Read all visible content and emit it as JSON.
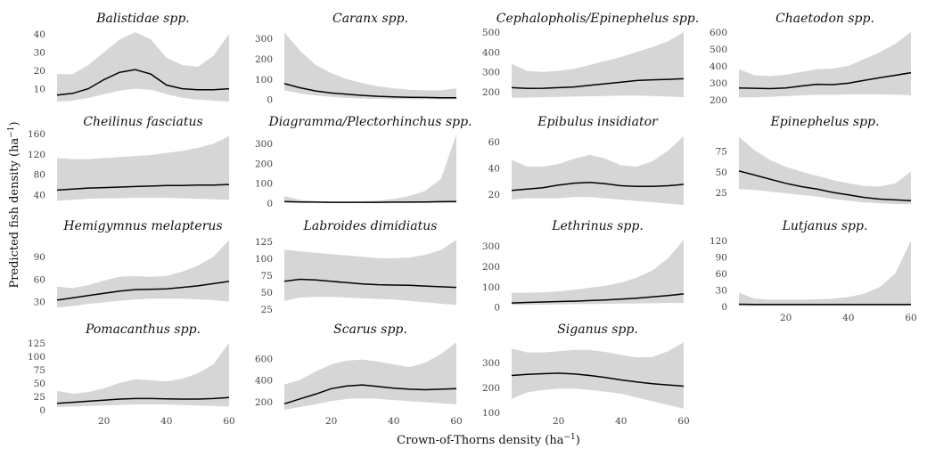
{
  "chart_data": {
    "type": "line",
    "grid": false,
    "xlabel": "Crown-of-Thorns density (ha",
    "xlabel_unit_sup": "−1",
    "xlabel_close": ")",
    "ylabel": "Predicted fish density (ha",
    "ylabel_unit_sup": "−1",
    "ylabel_close": ")",
    "xlim": [
      5,
      60
    ],
    "xticks": [
      20,
      40,
      60
    ],
    "panels": [
      {
        "title": "Balistidae spp.",
        "ylim": [
          3,
          42
        ],
        "yticks": [
          10,
          20,
          30,
          40
        ],
        "x": [
          5,
          10,
          15,
          20,
          25,
          30,
          35,
          40,
          45,
          50,
          55,
          60
        ],
        "fit": [
          6.5,
          7.5,
          10,
          15,
          19,
          20.5,
          18,
          12,
          10,
          9.5,
          9.5,
          10
        ],
        "lower": [
          3,
          3.5,
          5,
          7,
          9,
          10,
          9.5,
          7,
          5,
          4,
          3.5,
          3
        ],
        "upper": [
          18,
          18,
          23,
          30,
          37,
          41,
          37,
          27,
          23,
          22,
          28,
          40
        ]
      },
      {
        "title": "Caranx spp.",
        "ylim": [
          -10,
          340
        ],
        "yticks": [
          0,
          100,
          200,
          300
        ],
        "x": [
          5,
          10,
          15,
          20,
          25,
          30,
          35,
          40,
          45,
          50,
          55,
          60
        ],
        "fit": [
          78,
          58,
          42,
          32,
          26,
          20,
          16,
          13,
          11,
          10,
          9,
          9
        ],
        "lower": [
          45,
          30,
          20,
          13,
          8,
          5,
          3,
          2,
          1,
          1,
          1,
          1
        ],
        "upper": [
          330,
          240,
          170,
          130,
          100,
          80,
          65,
          55,
          48,
          45,
          45,
          55
        ]
      },
      {
        "title": "Cephalopholis/Epinephelus spp.",
        "ylim": [
          150,
          510
        ],
        "yticks": [
          200,
          300,
          400,
          500
        ],
        "x": [
          5,
          10,
          15,
          20,
          25,
          30,
          35,
          40,
          45,
          50,
          55,
          60
        ],
        "fit": [
          220,
          216,
          217,
          220,
          224,
          232,
          240,
          248,
          256,
          260,
          262,
          265
        ],
        "lower": [
          170,
          170,
          172,
          174,
          175,
          177,
          178,
          180,
          180,
          178,
          175,
          172
        ],
        "upper": [
          340,
          305,
          300,
          305,
          315,
          335,
          355,
          375,
          400,
          425,
          455,
          500
        ]
      },
      {
        "title": "Chaetodon spp.",
        "ylim": [
          190,
          610
        ],
        "yticks": [
          200,
          300,
          400,
          500,
          600
        ],
        "x": [
          5,
          10,
          15,
          20,
          25,
          30,
          35,
          40,
          45,
          50,
          55,
          60
        ],
        "fit": [
          270,
          268,
          266,
          270,
          282,
          292,
          290,
          298,
          315,
          330,
          345,
          360
        ],
        "lower": [
          215,
          215,
          218,
          222,
          226,
          230,
          230,
          232,
          232,
          232,
          230,
          228
        ],
        "upper": [
          380,
          345,
          340,
          348,
          365,
          380,
          385,
          400,
          440,
          480,
          530,
          600
        ]
      },
      {
        "title": "Cheilinus fasciatus",
        "ylim": [
          20,
          160
        ],
        "yticks": [
          40,
          80,
          120,
          160
        ],
        "x": [
          5,
          10,
          15,
          20,
          25,
          30,
          35,
          40,
          45,
          50,
          55,
          60
        ],
        "fit": [
          49,
          51,
          53,
          54,
          55,
          56,
          57,
          58,
          58,
          59,
          59,
          60
        ],
        "lower": [
          28,
          30,
          32,
          33,
          33,
          34,
          34,
          34,
          33,
          32,
          31,
          30
        ],
        "upper": [
          112,
          110,
          110,
          112,
          114,
          116,
          118,
          122,
          126,
          132,
          140,
          155
        ]
      },
      {
        "title": "Diagramma/Plectorhinchus spp.",
        "ylim": [
          -10,
          350
        ],
        "yticks": [
          0,
          100,
          200,
          300
        ],
        "x": [
          5,
          10,
          15,
          20,
          25,
          30,
          35,
          40,
          45,
          50,
          55,
          60
        ],
        "fit": [
          7,
          5,
          4,
          3,
          3,
          3,
          3,
          4,
          4,
          5,
          6,
          7
        ],
        "lower": [
          1,
          1,
          1,
          0,
          0,
          0,
          0,
          0,
          0,
          0,
          0,
          0
        ],
        "upper": [
          35,
          15,
          10,
          7,
          7,
          8,
          12,
          20,
          35,
          60,
          120,
          345
        ]
      },
      {
        "title": "Epibulus insidiator",
        "ylim": [
          12,
          66
        ],
        "yticks": [
          20,
          40,
          60
        ],
        "x": [
          5,
          10,
          15,
          20,
          25,
          30,
          35,
          40,
          45,
          50,
          55,
          60
        ],
        "fit": [
          23,
          24,
          25,
          27,
          28.5,
          29,
          28,
          26.5,
          26,
          26,
          26.5,
          27.5
        ],
        "lower": [
          16,
          17,
          17,
          17,
          18,
          18,
          17,
          16,
          15,
          14,
          13,
          12
        ],
        "upper": [
          46,
          41,
          41,
          43,
          47,
          50,
          47,
          42,
          41,
          45,
          53,
          64
        ]
      },
      {
        "title": "Epinephelus spp.",
        "ylim": [
          10,
          96
        ],
        "yticks": [
          25,
          50,
          75
        ],
        "x": [
          5,
          10,
          15,
          20,
          25,
          30,
          35,
          40,
          45,
          50,
          55,
          60
        ],
        "fit": [
          51,
          46,
          41,
          36,
          32,
          29,
          25,
          22,
          19,
          17,
          16,
          15
        ],
        "lower": [
          29,
          28,
          26,
          24,
          22,
          20,
          17,
          15,
          13,
          12,
          11,
          11
        ],
        "upper": [
          92,
          76,
          64,
          56,
          50,
          45,
          40,
          36,
          33,
          32,
          36,
          50
        ]
      },
      {
        "title": "Hemigymnus melapterus",
        "ylim": [
          20,
          115
        ],
        "yticks": [
          30,
          60,
          90
        ],
        "x": [
          5,
          10,
          15,
          20,
          25,
          30,
          35,
          40,
          45,
          50,
          55,
          60
        ],
        "fit": [
          32,
          35,
          38,
          41,
          44,
          46,
          46.5,
          47,
          49,
          51,
          54,
          57
        ],
        "lower": [
          22,
          24,
          27,
          29,
          31,
          33,
          34,
          34,
          34,
          33,
          32,
          30
        ],
        "upper": [
          50,
          48,
          52,
          58,
          63,
          64,
          63,
          64,
          70,
          78,
          90,
          112
        ]
      },
      {
        "title": "Labroides dimidiatus",
        "ylim": [
          25,
          130
        ],
        "yticks": [
          25,
          50,
          75,
          100,
          125
        ],
        "x": [
          5,
          10,
          15,
          20,
          25,
          30,
          35,
          40,
          45,
          50,
          55,
          60
        ],
        "fit": [
          66,
          69,
          68,
          66,
          64,
          62,
          61,
          60.5,
          60,
          59,
          58,
          57
        ],
        "lower": [
          37,
          42,
          43,
          43,
          42,
          41,
          40,
          39,
          37,
          35,
          33,
          31
        ],
        "upper": [
          113,
          110,
          108,
          106,
          104,
          102,
          100,
          100,
          101,
          105,
          112,
          127
        ]
      },
      {
        "title": "Lethrinus spp.",
        "ylim": [
          -10,
          340
        ],
        "yticks": [
          0,
          100,
          200,
          300
        ],
        "x": [
          5,
          10,
          15,
          20,
          25,
          30,
          35,
          40,
          45,
          50,
          55,
          60
        ],
        "fit": [
          20,
          23,
          25,
          27,
          29,
          32,
          35,
          39,
          44,
          50,
          57,
          65
        ],
        "lower": [
          10,
          11,
          12,
          13,
          14,
          15,
          16,
          17,
          18,
          19,
          20,
          20
        ],
        "upper": [
          70,
          70,
          73,
          77,
          85,
          95,
          105,
          120,
          145,
          180,
          240,
          330
        ]
      },
      {
        "title": "Lutjanus spp.",
        "ylim": [
          -5,
          125
        ],
        "yticks": [
          0,
          30,
          60,
          90,
          120
        ],
        "x": [
          5,
          10,
          15,
          20,
          25,
          30,
          35,
          40,
          45,
          50,
          55,
          60
        ],
        "fit": [
          4,
          3.5,
          3.5,
          3.5,
          3.5,
          3.5,
          3.5,
          3.5,
          3.5,
          3.5,
          3.5,
          3.5
        ],
        "lower": [
          0.5,
          0.5,
          0.5,
          0.5,
          0.5,
          0.5,
          0.5,
          0.5,
          0.5,
          0.5,
          0.5,
          0.5
        ],
        "upper": [
          25,
          14,
          12,
          12,
          12,
          13,
          14,
          17,
          23,
          35,
          60,
          120
        ]
      },
      {
        "title": "Pomacanthus spp.",
        "ylim": [
          -5,
          128
        ],
        "yticks": [
          0,
          25,
          50,
          75,
          100,
          125
        ],
        "x": [
          5,
          10,
          15,
          20,
          25,
          30,
          35,
          40,
          45,
          50,
          55,
          60
        ],
        "fit": [
          12,
          14,
          16,
          18,
          20,
          21,
          21,
          20.5,
          20,
          20,
          21,
          23
        ],
        "lower": [
          5,
          6,
          7,
          8,
          9,
          10,
          10,
          10,
          9,
          8,
          7,
          6
        ],
        "upper": [
          35,
          30,
          33,
          40,
          50,
          57,
          55,
          53,
          58,
          68,
          85,
          125
        ]
      },
      {
        "title": "Scarus spp.",
        "ylim": [
          100,
          760
        ],
        "yticks": [
          200,
          400,
          600
        ],
        "x": [
          5,
          10,
          15,
          20,
          25,
          30,
          35,
          40,
          45,
          50,
          55,
          60
        ],
        "fit": [
          180,
          225,
          270,
          320,
          345,
          355,
          340,
          325,
          315,
          310,
          315,
          320
        ],
        "lower": [
          125,
          150,
          175,
          205,
          225,
          230,
          225,
          215,
          205,
          195,
          185,
          175
        ],
        "upper": [
          360,
          400,
          480,
          545,
          580,
          590,
          570,
          545,
          520,
          560,
          640,
          750
        ]
      },
      {
        "title": "Siganus spp.",
        "ylim": [
          100,
          385
        ],
        "yticks": [
          100,
          200,
          300
        ],
        "x": [
          5,
          10,
          15,
          20,
          25,
          30,
          35,
          40,
          45,
          50,
          55,
          60
        ],
        "fit": [
          248,
          252,
          255,
          257,
          254,
          248,
          240,
          230,
          222,
          215,
          210,
          205
        ],
        "lower": [
          155,
          180,
          190,
          195,
          195,
          190,
          183,
          175,
          160,
          145,
          130,
          115
        ],
        "upper": [
          355,
          340,
          340,
          345,
          350,
          350,
          342,
          330,
          320,
          322,
          345,
          380
        ]
      }
    ]
  }
}
